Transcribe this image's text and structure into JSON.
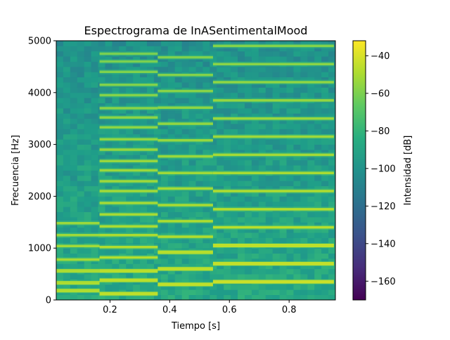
{
  "chart_data": {
    "type": "heatmap",
    "title": "Espectrograma de InASentimentalMood",
    "xlabel": "Tiempo [s]",
    "ylabel": "Frecuencia [Hz]",
    "colorbar_label": "Intensidad [dB]",
    "colormap": "viridis",
    "xlim": [
      0.02,
      0.955
    ],
    "ylim": [
      0,
      5000
    ],
    "clim": [
      -170,
      -32
    ],
    "xticks": [
      0.2,
      0.4,
      0.6,
      0.8
    ],
    "xtick_labels": [
      "0.2",
      "0.4",
      "0.6",
      "0.8"
    ],
    "yticks": [
      0,
      1000,
      2000,
      3000,
      4000,
      5000
    ],
    "ytick_labels": [
      "0",
      "1000",
      "2000",
      "3000",
      "4000",
      "5000"
    ],
    "cticks": [
      -160,
      -140,
      -120,
      -100,
      -80,
      -60,
      -40
    ],
    "ctick_labels": [
      "−160",
      "−140",
      "−120",
      "−100",
      "−80",
      "−60",
      "−40"
    ],
    "background_db": -95,
    "segments": [
      {
        "t_start": 0.02,
        "t_end": 0.165,
        "harmonics_hz": [
          180,
          330,
          560,
          780,
          1040,
          1250,
          1480
        ],
        "level_db": -48
      },
      {
        "t_start": 0.165,
        "t_end": 0.36,
        "harmonics_hz": [
          120,
          380,
          560,
          820,
          1020,
          1250,
          1420,
          1650,
          1870,
          2100,
          2290,
          2500,
          2680,
          2900,
          3100,
          3330,
          3520,
          3700,
          3950,
          4150,
          4400,
          4600,
          4750
        ],
        "level_db": -45
      },
      {
        "t_start": 0.36,
        "t_end": 0.545,
        "harmonics_hz": [
          300,
          600,
          920,
          1220,
          1520,
          1830,
          2150,
          2450,
          2770,
          3080,
          3400,
          3710,
          4030,
          4340,
          4680
        ],
        "level_db": -44
      },
      {
        "t_start": 0.545,
        "t_end": 0.95,
        "harmonics_hz": [
          350,
          700,
          1050,
          1400,
          1750,
          2100,
          2450,
          2800,
          3150,
          3500,
          3850,
          4200,
          4550,
          4900
        ],
        "level_db": -42
      }
    ]
  }
}
